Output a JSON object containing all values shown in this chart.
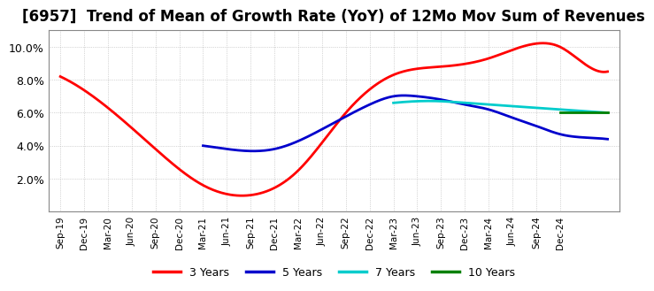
{
  "title": "[6957]  Trend of Mean of Growth Rate (YoY) of 12Mo Mov Sum of Revenues",
  "title_fontsize": 12,
  "ylim": [
    0.0,
    0.11
  ],
  "yticks": [
    0.02,
    0.04,
    0.06,
    0.08,
    0.1
  ],
  "ytick_labels": [
    "2.0%",
    "4.0%",
    "6.0%",
    "8.0%",
    "10.0%"
  ],
  "background_color": "#ffffff",
  "plot_bg_color": "#ffffff",
  "grid_color": "#aaaaaa",
  "series": {
    "3 Years": {
      "color": "#ff0000",
      "points": [
        [
          0,
          0.082
        ],
        [
          2,
          0.063
        ],
        [
          4,
          0.038
        ],
        [
          6,
          0.016
        ],
        [
          8,
          0.01
        ],
        [
          10,
          0.025
        ],
        [
          12,
          0.06
        ],
        [
          14,
          0.083
        ],
        [
          16,
          0.088
        ],
        [
          18,
          0.093
        ],
        [
          20,
          0.102
        ],
        [
          21,
          0.1
        ],
        [
          22,
          0.09
        ],
        [
          23,
          0.085
        ]
      ]
    },
    "5 Years": {
      "color": "#0000cc",
      "points": [
        [
          6,
          0.04
        ],
        [
          7,
          0.038
        ],
        [
          9,
          0.038
        ],
        [
          11,
          0.05
        ],
        [
          13,
          0.065
        ],
        [
          14,
          0.07
        ],
        [
          15,
          0.07
        ],
        [
          16,
          0.068
        ],
        [
          17,
          0.065
        ],
        [
          18,
          0.062
        ],
        [
          19,
          0.057
        ],
        [
          20,
          0.052
        ],
        [
          21,
          0.047
        ],
        [
          22,
          0.045
        ],
        [
          23,
          0.044
        ]
      ]
    },
    "7 Years": {
      "color": "#00cccc",
      "points": [
        [
          14,
          0.066
        ],
        [
          15,
          0.067
        ],
        [
          16,
          0.067
        ],
        [
          17,
          0.066
        ],
        [
          18,
          0.065
        ],
        [
          19,
          0.064
        ],
        [
          20,
          0.063
        ],
        [
          21,
          0.062
        ],
        [
          22,
          0.061
        ],
        [
          23,
          0.06
        ]
      ]
    },
    "10 Years": {
      "color": "#008000",
      "points": [
        [
          21,
          0.06
        ],
        [
          22,
          0.06
        ],
        [
          23,
          0.06
        ]
      ]
    }
  },
  "xtick_labels": [
    "Sep-19",
    "Dec-19",
    "Mar-20",
    "Jun-20",
    "Sep-20",
    "Dec-20",
    "Mar-21",
    "Jun-21",
    "Sep-21",
    "Dec-21",
    "Mar-22",
    "Jun-22",
    "Sep-22",
    "Dec-22",
    "Mar-23",
    "Jun-23",
    "Sep-23",
    "Dec-23",
    "Mar-24",
    "Jun-24",
    "Sep-24",
    "Dec-24"
  ],
  "legend_labels": [
    "3 Years",
    "5 Years",
    "7 Years",
    "10 Years"
  ],
  "legend_colors": [
    "#ff0000",
    "#0000cc",
    "#00cccc",
    "#008000"
  ]
}
